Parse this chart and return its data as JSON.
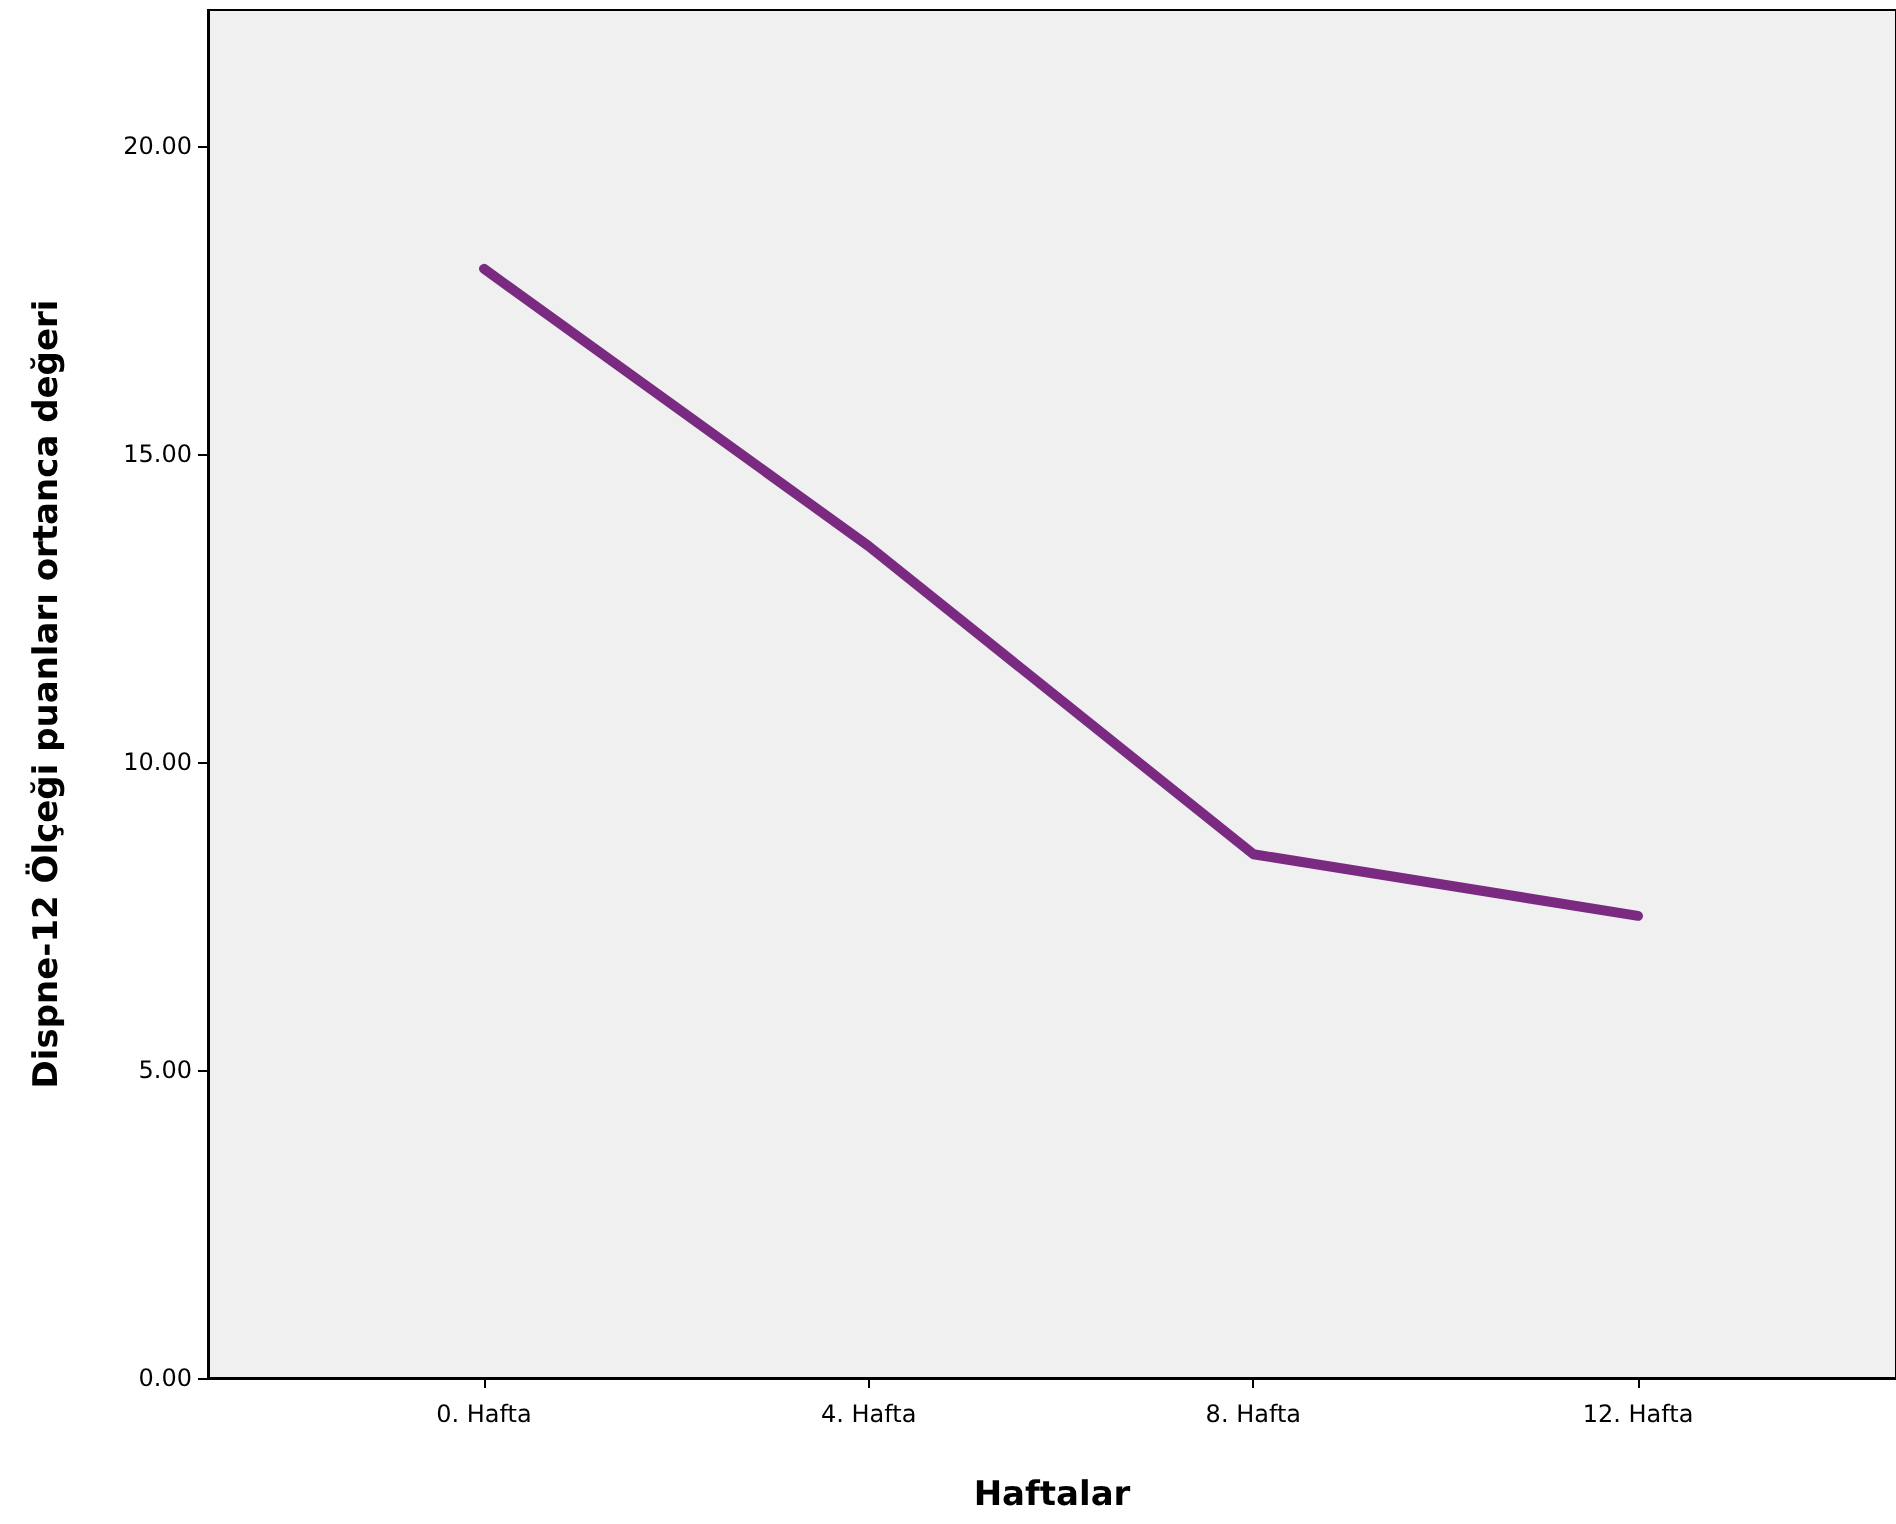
{
  "chart_data": {
    "type": "line",
    "xlabel": "Haftalar",
    "ylabel": "Dispne-12 Ölçeği puanları ortanca değeri",
    "categories": [
      "0. Hafta",
      "4. Hafta",
      "8. Hafta",
      "12. Hafta"
    ],
    "series": [
      {
        "color": "#7b2a82",
        "values": [
          18,
          13.5,
          8.5,
          7.5
        ]
      }
    ],
    "ylim": [
      0,
      22.2
    ],
    "yticks": [
      {
        "value": 0,
        "label": "0.00"
      },
      {
        "value": 5,
        "label": "5.00"
      },
      {
        "value": 10,
        "label": "10.00"
      },
      {
        "value": 15,
        "label": "15.00"
      },
      {
        "value": 20,
        "label": "20.00"
      }
    ],
    "grid": false,
    "marker": "none",
    "line_style": "solid"
  }
}
